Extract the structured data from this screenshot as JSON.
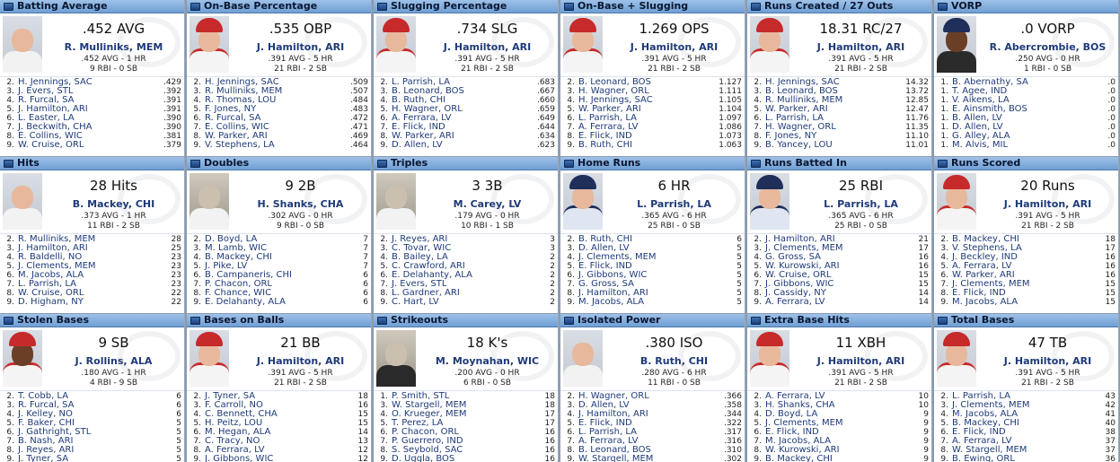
{
  "panels": [
    {
      "title": "Batting Average",
      "stat": ".452 AVG",
      "player": "R. Mulliniks, MEM",
      "line1": ".452 AVG - 1 HR",
      "line2": "9 RBI - 0 SB",
      "photo": "old-color",
      "list": [
        {
          "rank": "2.",
          "name": "H. Jennings, SAC",
          "value": ".429"
        },
        {
          "rank": "3.",
          "name": "J. Evers, STL",
          "value": ".392"
        },
        {
          "rank": "4.",
          "name": "R. Furcal, SA",
          "value": ".391"
        },
        {
          "rank": "5.",
          "name": "J. Hamilton, ARI",
          "value": ".391"
        },
        {
          "rank": "6.",
          "name": "L. Easter, LA",
          "value": ".390"
        },
        {
          "rank": "7.",
          "name": "J. Beckwith, CHA",
          "value": ".390"
        },
        {
          "rank": "8.",
          "name": "E. Collins, WIC",
          "value": ".381"
        },
        {
          "rank": "9.",
          "name": "W. Cruise, ORL",
          "value": ".379"
        }
      ]
    },
    {
      "title": "On-Base Percentage",
      "stat": ".535 OBP",
      "player": "J. Hamilton, ARI",
      "line1": ".391 AVG - 5 HR",
      "line2": "21 RBI - 2 SB",
      "photo": "red-cap",
      "list": [
        {
          "rank": "2.",
          "name": "H. Jennings, SAC",
          "value": ".509"
        },
        {
          "rank": "3.",
          "name": "R. Mulliniks, MEM",
          "value": ".507"
        },
        {
          "rank": "4.",
          "name": "R. Thomas, LOU",
          "value": ".484"
        },
        {
          "rank": "5.",
          "name": "F. Jones, NY",
          "value": ".483"
        },
        {
          "rank": "6.",
          "name": "R. Furcal, SA",
          "value": ".472"
        },
        {
          "rank": "7.",
          "name": "E. Collins, WIC",
          "value": ".471"
        },
        {
          "rank": "8.",
          "name": "W. Parker, ARI",
          "value": ".469"
        },
        {
          "rank": "9.",
          "name": "V. Stephens, LA",
          "value": ".464"
        }
      ]
    },
    {
      "title": "Slugging Percentage",
      "stat": ".734 SLG",
      "player": "J. Hamilton, ARI",
      "line1": ".391 AVG - 5 HR",
      "line2": "21 RBI - 2 SB",
      "photo": "red-cap",
      "list": [
        {
          "rank": "2.",
          "name": "L. Parrish, LA",
          "value": ".683"
        },
        {
          "rank": "3.",
          "name": "B. Leonard, BOS",
          "value": ".667"
        },
        {
          "rank": "4.",
          "name": "B. Ruth, CHI",
          "value": ".660"
        },
        {
          "rank": "5.",
          "name": "H. Wagner, ORL",
          "value": ".659"
        },
        {
          "rank": "6.",
          "name": "A. Ferrara, LV",
          "value": ".649"
        },
        {
          "rank": "7.",
          "name": "E. Flick, IND",
          "value": ".644"
        },
        {
          "rank": "8.",
          "name": "W. Parker, ARI",
          "value": ".634"
        },
        {
          "rank": "9.",
          "name": "D. Allen, LV",
          "value": ".623"
        }
      ]
    },
    {
      "title": "On-Base + Slugging",
      "stat": "1.269 OPS",
      "player": "J. Hamilton, ARI",
      "line1": ".391 AVG - 5 HR",
      "line2": "21 RBI - 2 SB",
      "photo": "red-cap",
      "list": [
        {
          "rank": "2.",
          "name": "B. Leonard, BOS",
          "value": "1.127"
        },
        {
          "rank": "3.",
          "name": "H. Wagner, ORL",
          "value": "1.111"
        },
        {
          "rank": "4.",
          "name": "H. Jennings, SAC",
          "value": "1.105"
        },
        {
          "rank": "5.",
          "name": "W. Parker, ARI",
          "value": "1.104"
        },
        {
          "rank": "6.",
          "name": "L. Parrish, LA",
          "value": "1.097"
        },
        {
          "rank": "7.",
          "name": "A. Ferrara, LV",
          "value": "1.086"
        },
        {
          "rank": "8.",
          "name": "E. Flick, IND",
          "value": "1.073"
        },
        {
          "rank": "9.",
          "name": "B. Ruth, CHI",
          "value": "1.063"
        }
      ]
    },
    {
      "title": "Runs Created / 27 Outs",
      "stat": "18.31 RC/27",
      "player": "J. Hamilton, ARI",
      "line1": ".391 AVG - 5 HR",
      "line2": "21 RBI - 2 SB",
      "photo": "red-cap",
      "list": [
        {
          "rank": "2.",
          "name": "H. Jennings, SAC",
          "value": "14.32"
        },
        {
          "rank": "3.",
          "name": "B. Leonard, BOS",
          "value": "13.72"
        },
        {
          "rank": "4.",
          "name": "R. Mulliniks, MEM",
          "value": "12.85"
        },
        {
          "rank": "5.",
          "name": "W. Parker, ARI",
          "value": "12.47"
        },
        {
          "rank": "6.",
          "name": "L. Parrish, LA",
          "value": "11.76"
        },
        {
          "rank": "7.",
          "name": "H. Wagner, ORL",
          "value": "11.35"
        },
        {
          "rank": "8.",
          "name": "F. Jones, NY",
          "value": "11.10"
        },
        {
          "rank": "9.",
          "name": "B. Yancey, LOU",
          "value": "11.01"
        }
      ]
    },
    {
      "title": "VORP",
      "stat": ".0 VORP",
      "player": "R. Abercrombie, BOS",
      "line1": ".250 AVG - 0 HR",
      "line2": "1 RBI - 0 SB",
      "photo": "dark",
      "list": [
        {
          "rank": "1.",
          "name": "B. Abernathy, SA",
          "value": ".0"
        },
        {
          "rank": "1.",
          "name": "T. Agee, IND",
          "value": ".0"
        },
        {
          "rank": "1.",
          "name": "V. Aikens, LA",
          "value": ".0"
        },
        {
          "rank": "1.",
          "name": "E. Ainsmith, BOS",
          "value": ".0"
        },
        {
          "rank": "1.",
          "name": "B. Allen, LV",
          "value": ".0"
        },
        {
          "rank": "1.",
          "name": "D. Allen, LV",
          "value": ".0"
        },
        {
          "rank": "1.",
          "name": "G. Alley, ALA",
          "value": ".0"
        },
        {
          "rank": "1.",
          "name": "M. Alvis, MIL",
          "value": ".0"
        }
      ]
    },
    {
      "title": "Hits",
      "stat": "28 Hits",
      "player": "B. Mackey, CHI",
      "line1": ".373 AVG - 1 HR",
      "line2": "11 RBI - 2 SB",
      "photo": "old-color",
      "list": [
        {
          "rank": "2.",
          "name": "R. Mulliniks, MEM",
          "value": "28"
        },
        {
          "rank": "3.",
          "name": "J. Hamilton, ARI",
          "value": "25"
        },
        {
          "rank": "4.",
          "name": "R. Baldelli, NO",
          "value": "23"
        },
        {
          "rank": "5.",
          "name": "J. Clements, MEM",
          "value": "23"
        },
        {
          "rank": "6.",
          "name": "M. Jacobs, ALA",
          "value": "23"
        },
        {
          "rank": "7.",
          "name": "L. Parrish, LA",
          "value": "23"
        },
        {
          "rank": "8.",
          "name": "W. Cruise, ORL",
          "value": "22"
        },
        {
          "rank": "9.",
          "name": "D. Higham, NY",
          "value": "22"
        }
      ]
    },
    {
      "title": "Doubles",
      "stat": "9 2B",
      "player": "H. Shanks, CHA",
      "line1": ".302 AVG - 0 HR",
      "line2": "9 RBI - 0 SB",
      "photo": "old",
      "list": [
        {
          "rank": "2.",
          "name": "D. Boyd, LA",
          "value": "7"
        },
        {
          "rank": "3.",
          "name": "M. Lamb, WIC",
          "value": "7"
        },
        {
          "rank": "4.",
          "name": "B. Mackey, CHI",
          "value": "7"
        },
        {
          "rank": "5.",
          "name": "J. Pike, LV",
          "value": "7"
        },
        {
          "rank": "6.",
          "name": "B. Campaneris, CHI",
          "value": "6"
        },
        {
          "rank": "7.",
          "name": "P. Chacon, ORL",
          "value": "6"
        },
        {
          "rank": "8.",
          "name": "F. Chance, WIC",
          "value": "6"
        },
        {
          "rank": "9.",
          "name": "E. Delahanty, ALA",
          "value": "6"
        }
      ]
    },
    {
      "title": "Triples",
      "stat": "3 3B",
      "player": "M. Carey, LV",
      "line1": ".179 AVG - 0 HR",
      "line2": "10 RBI - 1 SB",
      "photo": "old",
      "list": [
        {
          "rank": "2.",
          "name": "J. Reyes, ARI",
          "value": "3"
        },
        {
          "rank": "3.",
          "name": "C. Tovar, WIC",
          "value": "3"
        },
        {
          "rank": "4.",
          "name": "B. Bailey, LA",
          "value": "2"
        },
        {
          "rank": "5.",
          "name": "C. Crawford, ARI",
          "value": "2"
        },
        {
          "rank": "6.",
          "name": "E. Delahanty, ALA",
          "value": "2"
        },
        {
          "rank": "7.",
          "name": "J. Evers, STL",
          "value": "2"
        },
        {
          "rank": "8.",
          "name": "L. Gardner, ARI",
          "value": "2"
        },
        {
          "rank": "9.",
          "name": "C. Hart, LV",
          "value": "2"
        }
      ]
    },
    {
      "title": "Home Runs",
      "stat": "6 HR",
      "player": "L. Parrish, LA",
      "line1": ".365 AVG - 6 HR",
      "line2": "25 RBI - 0 SB",
      "photo": "blue-cap",
      "list": [
        {
          "rank": "2.",
          "name": "B. Ruth, CHI",
          "value": "6"
        },
        {
          "rank": "3.",
          "name": "D. Allen, LV",
          "value": "5"
        },
        {
          "rank": "4.",
          "name": "J. Clements, MEM",
          "value": "5"
        },
        {
          "rank": "5.",
          "name": "E. Flick, IND",
          "value": "5"
        },
        {
          "rank": "6.",
          "name": "J. Gibbons, WIC",
          "value": "5"
        },
        {
          "rank": "7.",
          "name": "G. Gross, SA",
          "value": "5"
        },
        {
          "rank": "8.",
          "name": "J. Hamilton, ARI",
          "value": "5"
        },
        {
          "rank": "9.",
          "name": "M. Jacobs, ALA",
          "value": "5"
        }
      ]
    },
    {
      "title": "Runs Batted In",
      "stat": "25 RBI",
      "player": "L. Parrish, LA",
      "line1": ".365 AVG - 6 HR",
      "line2": "25 RBI - 0 SB",
      "photo": "blue-cap",
      "list": [
        {
          "rank": "2.",
          "name": "J. Hamilton, ARI",
          "value": "21"
        },
        {
          "rank": "3.",
          "name": "J. Clements, MEM",
          "value": "17"
        },
        {
          "rank": "4.",
          "name": "G. Gross, SA",
          "value": "16"
        },
        {
          "rank": "5.",
          "name": "W. Kurowski, ARI",
          "value": "16"
        },
        {
          "rank": "6.",
          "name": "W. Cruise, ORL",
          "value": "15"
        },
        {
          "rank": "7.",
          "name": "J. Gibbons, WIC",
          "value": "15"
        },
        {
          "rank": "8.",
          "name": "J. Cassidy, NY",
          "value": "14"
        },
        {
          "rank": "9.",
          "name": "A. Ferrara, LV",
          "value": "14"
        }
      ]
    },
    {
      "title": "Runs Scored",
      "stat": "20 Runs",
      "player": "J. Hamilton, ARI",
      "line1": ".391 AVG - 5 HR",
      "line2": "21 RBI - 2 SB",
      "photo": "red-cap",
      "list": [
        {
          "rank": "2.",
          "name": "B. Mackey, CHI",
          "value": "18"
        },
        {
          "rank": "3.",
          "name": "V. Stephens, LA",
          "value": "17"
        },
        {
          "rank": "4.",
          "name": "J. Beckley, IND",
          "value": "16"
        },
        {
          "rank": "5.",
          "name": "A. Ferrara, LV",
          "value": "16"
        },
        {
          "rank": "6.",
          "name": "W. Parker, ARI",
          "value": "16"
        },
        {
          "rank": "7.",
          "name": "J. Clements, MEM",
          "value": "15"
        },
        {
          "rank": "8.",
          "name": "E. Flick, IND",
          "value": "15"
        },
        {
          "rank": "9.",
          "name": "M. Jacobs, ALA",
          "value": "15"
        }
      ]
    },
    {
      "title": "Stolen Bases",
      "stat": "9 SB",
      "player": "J. Rollins, ALA",
      "line1": ".180 AVG - 1 HR",
      "line2": "4 RBI - 9 SB",
      "photo": "red-cap-dark",
      "list": [
        {
          "rank": "2.",
          "name": "T. Cobb, LA",
          "value": "6"
        },
        {
          "rank": "3.",
          "name": "R. Furcal, SA",
          "value": "6"
        },
        {
          "rank": "4.",
          "name": "J. Kelley, NO",
          "value": "6"
        },
        {
          "rank": "5.",
          "name": "F. Baker, CHI",
          "value": "5"
        },
        {
          "rank": "6.",
          "name": "J. Gathright, STL",
          "value": "5"
        },
        {
          "rank": "7.",
          "name": "B. Nash, ARI",
          "value": "5"
        },
        {
          "rank": "8.",
          "name": "J. Reyes, ARI",
          "value": "5"
        },
        {
          "rank": "9.",
          "name": "J. Tyner, SA",
          "value": "5"
        }
      ]
    },
    {
      "title": "Bases on Balls",
      "stat": "21 BB",
      "player": "J. Hamilton, ARI",
      "line1": ".391 AVG - 5 HR",
      "line2": "21 RBI - 2 SB",
      "photo": "red-cap",
      "list": [
        {
          "rank": "2.",
          "name": "J. Tyner, SA",
          "value": "18"
        },
        {
          "rank": "3.",
          "name": "F. Carroll, NO",
          "value": "16"
        },
        {
          "rank": "4.",
          "name": "C. Bennett, CHA",
          "value": "15"
        },
        {
          "rank": "5.",
          "name": "H. Peitz, LOU",
          "value": "15"
        },
        {
          "rank": "6.",
          "name": "M. Hegan, ALA",
          "value": "14"
        },
        {
          "rank": "7.",
          "name": "C. Tracy, NO",
          "value": "13"
        },
        {
          "rank": "8.",
          "name": "A. Ferrara, LV",
          "value": "12"
        },
        {
          "rank": "9.",
          "name": "J. Gibbons, WIC",
          "value": "12"
        }
      ]
    },
    {
      "title": "Strikeouts",
      "stat": "18 K's",
      "player": "M. Moynahan, WIC",
      "line1": ".200 AVG - 0 HR",
      "line2": "6 RBI - 0 SB",
      "photo": "bw",
      "list": [
        {
          "rank": "1.",
          "name": "P. Smith, STL",
          "value": "18"
        },
        {
          "rank": "3.",
          "name": "W. Stargell, MEM",
          "value": "18"
        },
        {
          "rank": "4.",
          "name": "O. Krueger, MEM",
          "value": "17"
        },
        {
          "rank": "5.",
          "name": "T. Perez, LA",
          "value": "17"
        },
        {
          "rank": "6.",
          "name": "P. Chacon, ORL",
          "value": "16"
        },
        {
          "rank": "7.",
          "name": "P. Guerrero, IND",
          "value": "16"
        },
        {
          "rank": "8.",
          "name": "S. Seybold, SAC",
          "value": "16"
        },
        {
          "rank": "9.",
          "name": "D. Uggla, BOS",
          "value": "16"
        }
      ]
    },
    {
      "title": "Isolated Power",
      "stat": ".380 ISO",
      "player": "B. Ruth, CHI",
      "line1": ".280 AVG - 6 HR",
      "line2": "11 RBI - 0 SB",
      "photo": "old-color",
      "list": [
        {
          "rank": "2.",
          "name": "H. Wagner, ORL",
          "value": ".366"
        },
        {
          "rank": "3.",
          "name": "D. Allen, LV",
          "value": ".358"
        },
        {
          "rank": "4.",
          "name": "J. Hamilton, ARI",
          "value": ".344"
        },
        {
          "rank": "5.",
          "name": "E. Flick, IND",
          "value": ".322"
        },
        {
          "rank": "6.",
          "name": "L. Parrish, LA",
          "value": ".317"
        },
        {
          "rank": "7.",
          "name": "A. Ferrara, LV",
          "value": ".316"
        },
        {
          "rank": "8.",
          "name": "B. Leonard, BOS",
          "value": ".310"
        },
        {
          "rank": "9.",
          "name": "W. Stargell, MEM",
          "value": ".302"
        }
      ]
    },
    {
      "title": "Extra Base Hits",
      "stat": "11 XBH",
      "player": "J. Hamilton, ARI",
      "line1": ".391 AVG - 5 HR",
      "line2": "21 RBI - 2 SB",
      "photo": "red-cap",
      "list": [
        {
          "rank": "2.",
          "name": "A. Ferrara, LV",
          "value": "10"
        },
        {
          "rank": "3.",
          "name": "H. Shanks, CHA",
          "value": "10"
        },
        {
          "rank": "4.",
          "name": "D. Boyd, LA",
          "value": "9"
        },
        {
          "rank": "5.",
          "name": "J. Clements, MEM",
          "value": "9"
        },
        {
          "rank": "6.",
          "name": "E. Flick, IND",
          "value": "9"
        },
        {
          "rank": "7.",
          "name": "M. Jacobs, ALA",
          "value": "9"
        },
        {
          "rank": "8.",
          "name": "W. Kurowski, ARI",
          "value": "9"
        },
        {
          "rank": "9.",
          "name": "B. Mackey, CHI",
          "value": "9"
        }
      ]
    },
    {
      "title": "Total Bases",
      "stat": "47 TB",
      "player": "J. Hamilton, ARI",
      "line1": ".391 AVG - 5 HR",
      "line2": "21 RBI - 2 SB",
      "photo": "red-cap",
      "list": [
        {
          "rank": "2.",
          "name": "L. Parrish, LA",
          "value": "43"
        },
        {
          "rank": "3.",
          "name": "J. Clements, MEM",
          "value": "42"
        },
        {
          "rank": "4.",
          "name": "M. Jacobs, ALA",
          "value": "41"
        },
        {
          "rank": "5.",
          "name": "B. Mackey, CHI",
          "value": "40"
        },
        {
          "rank": "6.",
          "name": "E. Flick, IND",
          "value": "38"
        },
        {
          "rank": "7.",
          "name": "A. Ferrara, LV",
          "value": "37"
        },
        {
          "rank": "8.",
          "name": "W. Stargell, MEM",
          "value": "37"
        },
        {
          "rank": "9.",
          "name": "B. Ewing, ORL",
          "value": "36"
        }
      ]
    }
  ]
}
